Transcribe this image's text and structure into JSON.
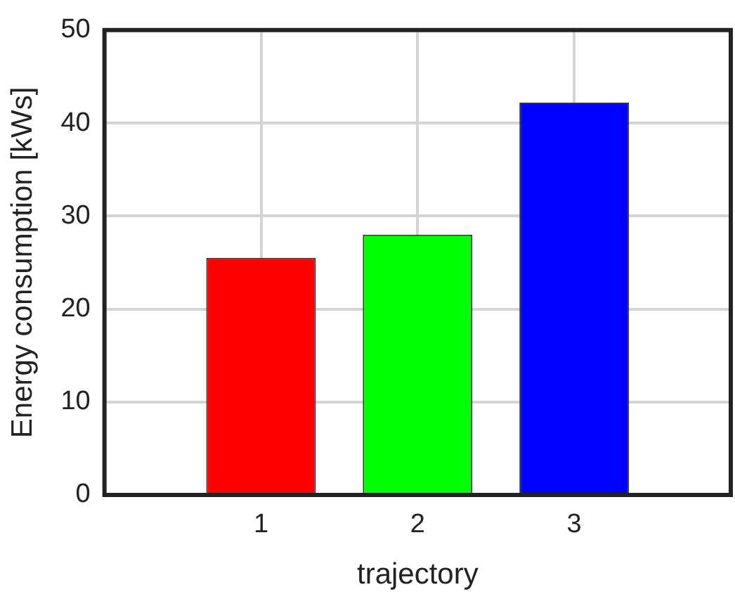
{
  "chart_data": {
    "type": "bar",
    "xlabel": "trajectory",
    "ylabel": "Energy consumption [kWs]",
    "x": [
      1,
      2,
      3
    ],
    "values": [
      25.5,
      28.0,
      42.2
    ],
    "colors": [
      "#ff0000",
      "#00ff00",
      "#0000ff"
    ],
    "xlim": [
      0,
      4
    ],
    "xticks": [
      1,
      2,
      3
    ],
    "ylim": [
      0,
      50
    ],
    "yticks": [
      0,
      10,
      20,
      30,
      40,
      50
    ],
    "grid": true,
    "legend": false
  }
}
